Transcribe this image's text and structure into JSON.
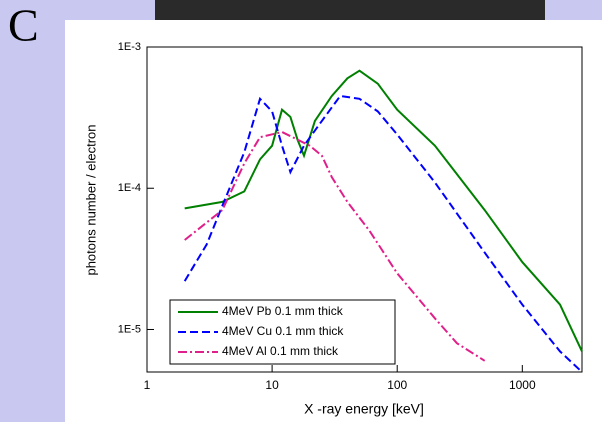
{
  "slide_label": "C",
  "chart_data": {
    "type": "line",
    "xlabel": "X -ray energy [keV]",
    "ylabel": "photons number / electron",
    "xscale": "log",
    "yscale": "log",
    "xlim": [
      1,
      3000
    ],
    "ylim": [
      5e-06,
      0.001
    ],
    "xticks": [
      1,
      10,
      100,
      1000
    ],
    "yticks": [
      {
        "value": 0.001,
        "label": "1E-3"
      },
      {
        "value": 0.0001,
        "label": "1E-4"
      },
      {
        "value": 1e-05,
        "label": "1E-5"
      }
    ],
    "legend": "lower left",
    "series": [
      {
        "name": "4MeV Pb 0.1 mm thick",
        "color": "#008000",
        "linestyle": "solid",
        "x": [
          2,
          4,
          6,
          8,
          10,
          12,
          14,
          16,
          18,
          22,
          30,
          40,
          50,
          70,
          100,
          200,
          500,
          1000,
          2000,
          3000
        ],
        "values": [
          7.2e-05,
          8e-05,
          9.5e-05,
          0.00016,
          0.0002,
          0.00036,
          0.00032,
          0.00022,
          0.00017,
          0.0003,
          0.00045,
          0.0006,
          0.00068,
          0.00055,
          0.00036,
          0.0002,
          7e-05,
          3e-05,
          1.5e-05,
          7e-06
        ]
      },
      {
        "name": "4MeV Cu 0.1 mm thick",
        "color": "#0000ff",
        "linestyle": "dashed",
        "x": [
          2,
          3,
          4,
          6,
          8,
          10,
          12,
          14,
          18,
          25,
          35,
          50,
          70,
          100,
          200,
          500,
          1000,
          2000,
          3000
        ],
        "values": [
          2.2e-05,
          4e-05,
          7.5e-05,
          0.00018,
          0.00043,
          0.00035,
          0.0002,
          0.00013,
          0.0002,
          0.0003,
          0.00045,
          0.00043,
          0.00035,
          0.00024,
          0.00011,
          3.5e-05,
          1.5e-05,
          7e-06,
          5e-06
        ]
      },
      {
        "name": "4MeV Al 0.1 mm thick",
        "color": "#e0208a",
        "linestyle": "dashdot",
        "x": [
          2,
          4,
          6,
          8,
          12,
          20,
          25,
          30,
          40,
          60,
          100,
          200,
          300,
          500
        ],
        "values": [
          4.3e-05,
          7e-05,
          0.00015,
          0.00023,
          0.00025,
          0.0002,
          0.00017,
          0.00012,
          8e-05,
          5e-05,
          2.5e-05,
          1.2e-05,
          8e-06,
          6e-06
        ]
      }
    ]
  }
}
